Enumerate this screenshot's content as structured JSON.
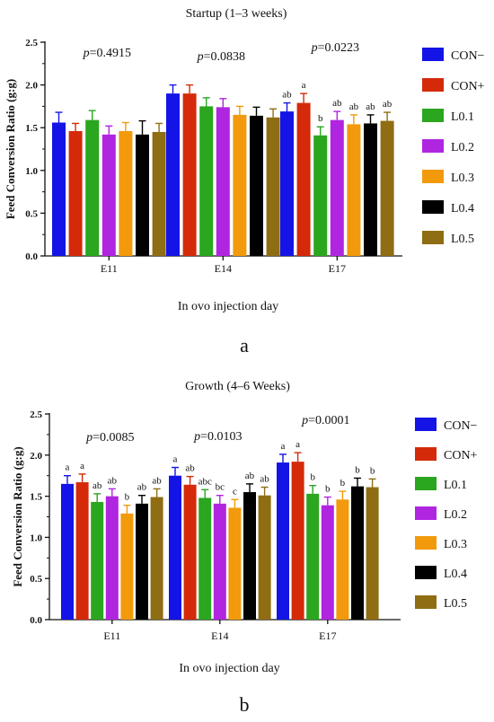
{
  "colors": {
    "CON−": "#1414e6",
    "CON+": "#d42a0a",
    "L0.1": "#2aa61f",
    "L0.2": "#b025e0",
    "L0.3": "#f29a0c",
    "L0.4": "#000000",
    "L0.5": "#8f6d12"
  },
  "chart_data": [
    {
      "type": "bar",
      "panel_label": "a",
      "title": "Startup (1–3 weeks)",
      "xlabel": "In ovo injection day",
      "ylabel": "Feed Conversion Ratio (g:g)",
      "ylim": [
        0,
        2.5
      ],
      "yticks": [
        "0.0",
        "0.5",
        "1.0",
        "1.5",
        "2.0",
        "2.5"
      ],
      "categories": [
        "E11",
        "E14",
        "E17"
      ],
      "legend_position": "right",
      "pvalues": [
        {
          "prefix": "p",
          "text": "=0.4915"
        },
        {
          "prefix": "p",
          "text": "=0.0838"
        },
        {
          "prefix": "p",
          "text": "=0.0223"
        }
      ],
      "series": [
        {
          "name": "CON−",
          "values": [
            1.56,
            1.9,
            1.69
          ],
          "errors": [
            0.12,
            0.1,
            0.1
          ],
          "letters": [
            "",
            "",
            "ab"
          ]
        },
        {
          "name": "CON+",
          "values": [
            1.46,
            1.9,
            1.79
          ],
          "errors": [
            0.09,
            0.1,
            0.11
          ],
          "letters": [
            "",
            "",
            "a"
          ]
        },
        {
          "name": "L0.1",
          "values": [
            1.59,
            1.75,
            1.41
          ],
          "errors": [
            0.11,
            0.1,
            0.1
          ],
          "letters": [
            "",
            "",
            "b"
          ]
        },
        {
          "name": "L0.2",
          "values": [
            1.42,
            1.74,
            1.59
          ],
          "errors": [
            0.1,
            0.1,
            0.1
          ],
          "letters": [
            "",
            "",
            "ab"
          ]
        },
        {
          "name": "L0.3",
          "values": [
            1.46,
            1.65,
            1.54
          ],
          "errors": [
            0.1,
            0.1,
            0.11
          ],
          "letters": [
            "",
            "",
            "ab"
          ]
        },
        {
          "name": "L0.4",
          "values": [
            1.42,
            1.64,
            1.55
          ],
          "errors": [
            0.16,
            0.1,
            0.1
          ],
          "letters": [
            "",
            "",
            "ab"
          ]
        },
        {
          "name": "L0.5",
          "values": [
            1.45,
            1.62,
            1.58
          ],
          "errors": [
            0.1,
            0.1,
            0.1
          ],
          "letters": [
            "",
            "",
            "ab"
          ]
        }
      ]
    },
    {
      "type": "bar",
      "panel_label": "b",
      "title": "Growth (4–6 Weeks)",
      "xlabel": "In ovo injection day",
      "ylabel": "Feed Conversion Ratio (g:g)",
      "ylim": [
        0,
        2.5
      ],
      "yticks": [
        "0.0",
        "0.5",
        "1.0",
        "1.5",
        "2.0",
        "2.5"
      ],
      "categories": [
        "E11",
        "E14",
        "E17"
      ],
      "legend_position": "right",
      "pvalues": [
        {
          "prefix": "p",
          "text": "=0.0085"
        },
        {
          "prefix": "p",
          "text": "=0.0103"
        },
        {
          "prefix": "p",
          "text": "=0.0001"
        }
      ],
      "series": [
        {
          "name": "CON−",
          "values": [
            1.65,
            1.75,
            1.91
          ],
          "errors": [
            0.1,
            0.1,
            0.1
          ],
          "letters": [
            "a",
            "a",
            "a"
          ]
        },
        {
          "name": "CON+",
          "values": [
            1.67,
            1.64,
            1.92
          ],
          "errors": [
            0.1,
            0.1,
            0.11
          ],
          "letters": [
            "a",
            "ab",
            "a"
          ]
        },
        {
          "name": "L0.1",
          "values": [
            1.43,
            1.48,
            1.53
          ],
          "errors": [
            0.1,
            0.1,
            0.1
          ],
          "letters": [
            "ab",
            "abc",
            "b"
          ]
        },
        {
          "name": "L0.2",
          "values": [
            1.5,
            1.41,
            1.39
          ],
          "errors": [
            0.09,
            0.1,
            0.1
          ],
          "letters": [
            "ab",
            "bc",
            "b"
          ]
        },
        {
          "name": "L0.3",
          "values": [
            1.29,
            1.36,
            1.46
          ],
          "errors": [
            0.1,
            0.1,
            0.1
          ],
          "letters": [
            "b",
            "c",
            "b"
          ]
        },
        {
          "name": "L0.4",
          "values": [
            1.41,
            1.55,
            1.62
          ],
          "errors": [
            0.1,
            0.1,
            0.1
          ],
          "letters": [
            "ab",
            "ab",
            "b"
          ]
        },
        {
          "name": "L0.5",
          "values": [
            1.49,
            1.51,
            1.61
          ],
          "errors": [
            0.1,
            0.1,
            0.1
          ],
          "letters": [
            "ab",
            "ab",
            "b"
          ]
        }
      ]
    }
  ]
}
